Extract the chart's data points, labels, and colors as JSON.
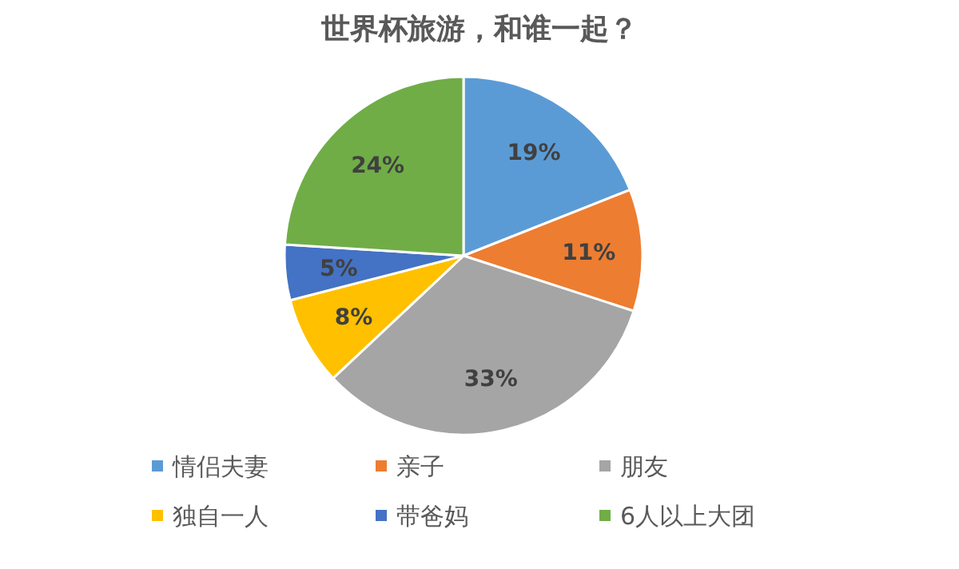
{
  "chart_data": {
    "type": "pie",
    "title": "世界杯旅游，和谁一起？",
    "categories": [
      "情侣夫妻",
      "亲子",
      "朋友",
      "独自一人",
      "带爸妈",
      "6人以上大团"
    ],
    "values": [
      19,
      11,
      33,
      8,
      5,
      24
    ],
    "colors": [
      "#5b9bd5",
      "#ed7d31",
      "#a5a5a5",
      "#ffc000",
      "#4472c4",
      "#70ad47"
    ],
    "value_labels": [
      "19%",
      "11%",
      "33%",
      "8%",
      "5%",
      "24%"
    ],
    "legend": "bottom"
  }
}
